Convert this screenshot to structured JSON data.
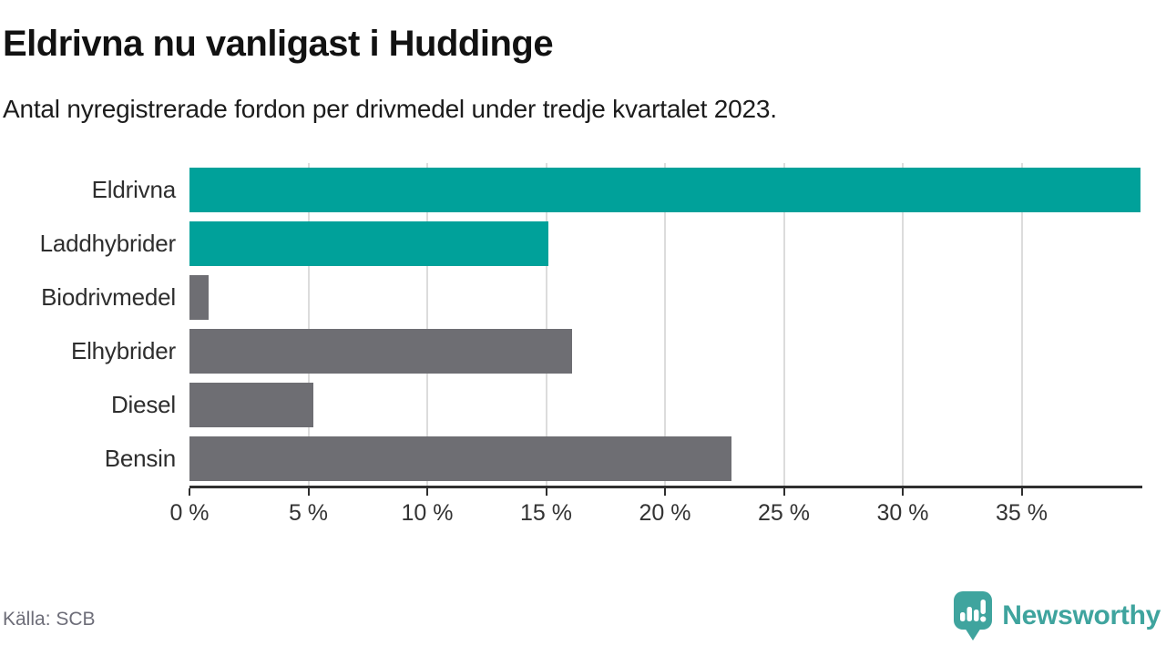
{
  "header": {
    "title": "Eldrivna nu vanligast i Huddinge",
    "subtitle": "Antal nyregistrerade fordon per drivmedel under tredje kvartalet 2023."
  },
  "chart_data": {
    "type": "bar",
    "orientation": "horizontal",
    "title": "Eldrivna nu vanligast i Huddinge",
    "subtitle": "Antal nyregistrerade fordon per drivmedel under tredje kvartalet 2023.",
    "categories": [
      "Eldrivna",
      "Laddhybrider",
      "Biodrivmedel",
      "Elhybrider",
      "Diesel",
      "Bensin"
    ],
    "values": [
      40.0,
      15.1,
      0.8,
      16.1,
      5.2,
      22.8
    ],
    "unit": "%",
    "bar_colors": [
      "#00a19a",
      "#00a19a",
      "#6e6e73",
      "#6e6e73",
      "#6e6e73",
      "#6e6e73"
    ],
    "xlim": [
      0,
      40
    ],
    "x_ticks": [
      0,
      5,
      10,
      15,
      20,
      25,
      30,
      35
    ],
    "x_tick_suffix": " %",
    "grid": "vertical-only",
    "legend": "none"
  },
  "footer": {
    "source": "Källa: SCB",
    "brand": "Newsworthy"
  },
  "colors": {
    "accent_teal": "#00a19a",
    "neutral_gray": "#6e6e73",
    "brand_teal": "#3fa49e",
    "gridline": "#dcdcdc",
    "axis": "#2f2f2f",
    "text_dark": "#1c1c1c",
    "text_muted": "#6d6d78"
  },
  "icons": {
    "logo": "newsworthy-barchart-pin-icon"
  }
}
